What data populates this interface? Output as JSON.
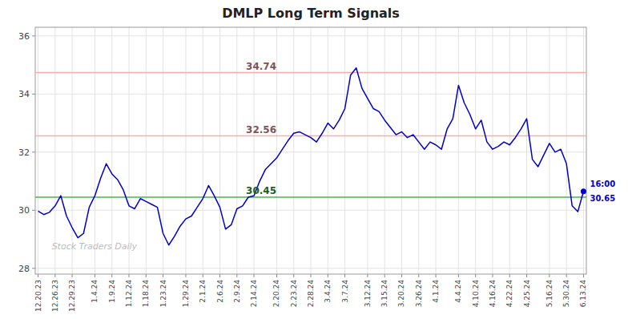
{
  "chart_data": {
    "type": "line",
    "title": "DMLP Long Term Signals",
    "color": "#0000cc",
    "grid": true,
    "ylim": [
      27.8,
      36.3
    ],
    "yticks": [
      28,
      30,
      32,
      34,
      36
    ],
    "categories": [
      "12.20.23",
      null,
      null,
      "12.26.23",
      null,
      null,
      "12.29.23",
      null,
      null,
      null,
      "1.4.24",
      null,
      null,
      "1.9.24",
      null,
      null,
      "1.12.24",
      null,
      null,
      "1.18.24",
      null,
      null,
      "1.23.24",
      null,
      null,
      null,
      "1.29.24",
      null,
      null,
      "2.1.24",
      null,
      null,
      "2.6.24",
      null,
      null,
      "2.9.24",
      null,
      null,
      "2.14.24",
      null,
      null,
      null,
      "2.20.24",
      null,
      null,
      "2.23.24",
      null,
      null,
      "2.28.24",
      null,
      null,
      "3.4.24",
      null,
      null,
      "3.7.24",
      null,
      null,
      null,
      "3.12.24",
      null,
      null,
      "3.15.24",
      null,
      null,
      "3.20.24",
      null,
      null,
      "3.26.24",
      null,
      null,
      "4.1.24",
      null,
      null,
      null,
      "4.4.24",
      null,
      null,
      "4.10.24",
      null,
      null,
      "4.16.24",
      null,
      null,
      "4.22.24",
      null,
      null,
      "4.25.24",
      null,
      null,
      null,
      "5.16.24",
      null,
      null,
      "5.30.24",
      null,
      null,
      "6.13.24"
    ],
    "values": [
      29.97,
      29.85,
      29.93,
      30.15,
      30.5,
      29.8,
      29.4,
      29.05,
      29.2,
      30.1,
      30.5,
      31.1,
      31.6,
      31.25,
      31.05,
      30.7,
      30.15,
      30.05,
      30.4,
      30.3,
      30.2,
      30.1,
      29.2,
      28.8,
      29.1,
      29.45,
      29.7,
      29.8,
      30.1,
      30.4,
      30.85,
      30.5,
      30.1,
      29.35,
      29.5,
      30.05,
      30.15,
      30.45,
      30.5,
      31.0,
      31.4,
      31.6,
      31.8,
      32.1,
      32.4,
      32.65,
      32.7,
      32.6,
      32.5,
      32.35,
      32.65,
      33.0,
      32.8,
      33.1,
      33.5,
      34.65,
      34.9,
      34.2,
      33.85,
      33.5,
      33.4,
      33.1,
      32.85,
      32.6,
      32.7,
      32.5,
      32.6,
      32.35,
      32.1,
      32.35,
      32.25,
      32.1,
      32.8,
      33.15,
      34.3,
      33.7,
      33.3,
      32.8,
      33.1,
      32.35,
      32.1,
      32.2,
      32.35,
      32.25,
      32.5,
      32.8,
      33.15,
      31.75,
      31.5,
      31.9,
      32.3,
      32.0,
      32.1,
      31.6,
      30.15,
      29.95,
      30.65
    ],
    "hlines": [
      {
        "value": 34.74,
        "label": "34.74",
        "color": "#ffaaaa"
      },
      {
        "value": 32.56,
        "label": "32.56",
        "color": "#ffaaaa"
      },
      {
        "value": 30.45,
        "label": "30.45",
        "color": "#44bb44"
      }
    ],
    "last_point": {
      "value": 30.65,
      "label": "30.65",
      "time": "16:00",
      "color": "#0000cc"
    },
    "watermark": "Stock Traders Daily"
  }
}
